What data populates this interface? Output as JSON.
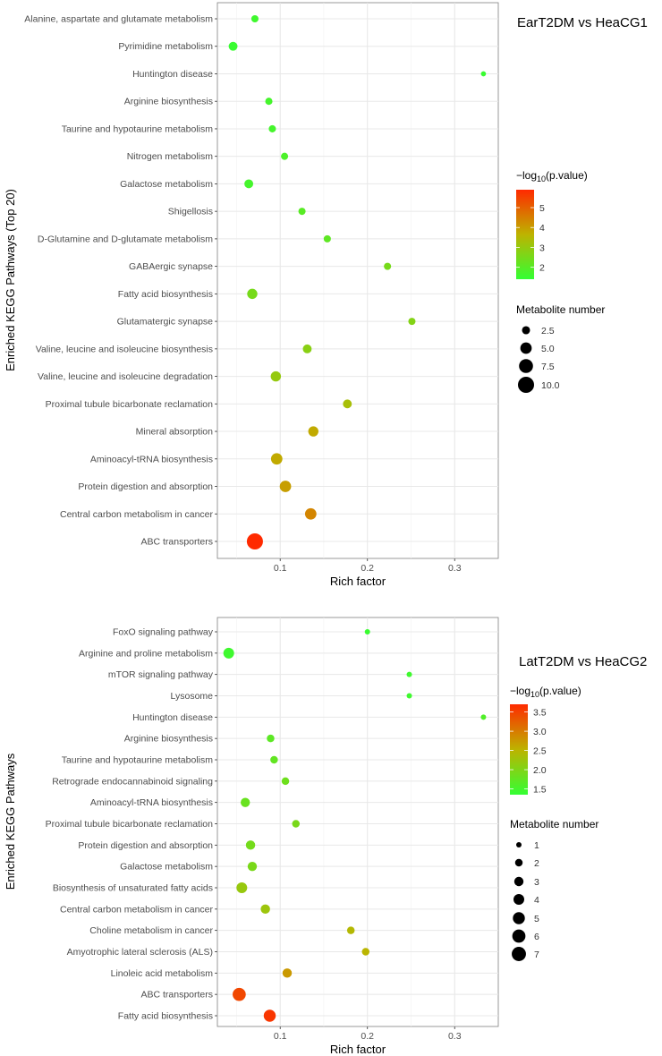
{
  "chart_data": [
    {
      "type": "scatter",
      "title": "EarT2DM vs HeaCG1",
      "xlabel": "Rich factor",
      "ylabel": "Enriched KEGG Pathways (Top 20)",
      "xticks": [
        "0.1",
        "0.2",
        "0.3"
      ],
      "xtick_values": [
        0.1,
        0.2,
        0.3
      ],
      "xlim": [
        0.028,
        0.35
      ],
      "color_legend": {
        "title_prefix": "−log",
        "title_sub": "10",
        "title_suffix": "(p.value)",
        "ticks": [
          "2",
          "3",
          "4",
          "5"
        ],
        "tick_values": [
          2,
          3,
          4,
          5
        ],
        "range": [
          1.4,
          5.9
        ],
        "low_color": "#33ff33",
        "mid_color": "#bdb300",
        "high_color": "#ff2a00"
      },
      "size_legend": {
        "title": "Metabolite number",
        "labels": [
          "2.5",
          "5.0",
          "7.5",
          "10.0"
        ],
        "values": [
          2.5,
          5,
          7.5,
          10
        ]
      },
      "points": [
        {
          "pathway": "Alanine, aspartate and glutamate metabolism",
          "rich_factor": 0.071,
          "count": 2,
          "neglog10p": 1.6
        },
        {
          "pathway": "Pyrimidine metabolism",
          "rich_factor": 0.046,
          "count": 3,
          "neglog10p": 1.5
        },
        {
          "pathway": "Huntington disease",
          "rich_factor": 0.333,
          "count": 1,
          "neglog10p": 1.5
        },
        {
          "pathway": "Arginine biosynthesis",
          "rich_factor": 0.087,
          "count": 2,
          "neglog10p": 1.7
        },
        {
          "pathway": "Taurine and hypotaurine metabolism",
          "rich_factor": 0.091,
          "count": 2,
          "neglog10p": 1.7
        },
        {
          "pathway": "Nitrogen metabolism",
          "rich_factor": 0.105,
          "count": 2,
          "neglog10p": 1.8
        },
        {
          "pathway": "Galactose metabolism",
          "rich_factor": 0.064,
          "count": 3,
          "neglog10p": 1.7
        },
        {
          "pathway": "Shigellosis",
          "rich_factor": 0.125,
          "count": 2,
          "neglog10p": 2.0
        },
        {
          "pathway": "D-Glutamine and D-glutamate metabolism",
          "rich_factor": 0.154,
          "count": 2,
          "neglog10p": 2.1
        },
        {
          "pathway": "GABAergic synapse",
          "rich_factor": 0.223,
          "count": 2,
          "neglog10p": 2.5
        },
        {
          "pathway": "Fatty acid biosynthesis",
          "rich_factor": 0.068,
          "count": 4,
          "neglog10p": 2.5
        },
        {
          "pathway": "Glutamatergic synapse",
          "rich_factor": 0.251,
          "count": 2,
          "neglog10p": 2.7
        },
        {
          "pathway": "Valine, leucine and isoleucine biosynthesis",
          "rich_factor": 0.131,
          "count": 3,
          "neglog10p": 2.8
        },
        {
          "pathway": "Valine, leucine and isoleucine degradation",
          "rich_factor": 0.095,
          "count": 4,
          "neglog10p": 3.0
        },
        {
          "pathway": "Proximal tubule bicarbonate reclamation",
          "rich_factor": 0.177,
          "count": 3,
          "neglog10p": 3.3
        },
        {
          "pathway": "Mineral absorption",
          "rich_factor": 0.138,
          "count": 4,
          "neglog10p": 3.8
        },
        {
          "pathway": "Aminoacyl-tRNA biosynthesis",
          "rich_factor": 0.096,
          "count": 5,
          "neglog10p": 3.8
        },
        {
          "pathway": "Protein digestion and absorption",
          "rich_factor": 0.106,
          "count": 5,
          "neglog10p": 4.0
        },
        {
          "pathway": "Central carbon metabolism in cancer",
          "rich_factor": 0.135,
          "count": 5,
          "neglog10p": 4.4
        },
        {
          "pathway": "ABC transporters",
          "rich_factor": 0.071,
          "count": 10,
          "neglog10p": 5.9
        }
      ]
    },
    {
      "type": "scatter",
      "title": "LatT2DM vs HeaCG2",
      "xlabel": "Rich factor",
      "ylabel": "Enriched KEGG Pathways",
      "xticks": [
        "0.1",
        "0.2",
        "0.3"
      ],
      "xtick_values": [
        0.1,
        0.2,
        0.3
      ],
      "xlim": [
        0.028,
        0.35
      ],
      "color_legend": {
        "title_prefix": "−log",
        "title_sub": "10",
        "title_suffix": "(p.value)",
        "ticks": [
          "1.5",
          "2.0",
          "2.5",
          "3.0",
          "3.5"
        ],
        "tick_values": [
          1.5,
          2.0,
          2.5,
          3.0,
          3.5
        ],
        "range": [
          1.35,
          3.7
        ],
        "low_color": "#33ff33",
        "mid_color": "#bdb300",
        "high_color": "#ff2a00"
      },
      "size_legend": {
        "title": "Metabolite number",
        "labels": [
          "1",
          "2",
          "3",
          "4",
          "5",
          "6",
          "7"
        ],
        "values": [
          1,
          2,
          3,
          4,
          5,
          6,
          7
        ]
      },
      "points": [
        {
          "pathway": "FoxO signaling pathway",
          "rich_factor": 0.2,
          "count": 1,
          "neglog10p": 1.4
        },
        {
          "pathway": "Arginine and proline metabolism",
          "rich_factor": 0.041,
          "count": 4,
          "neglog10p": 1.45
        },
        {
          "pathway": "mTOR signaling pathway",
          "rich_factor": 0.248,
          "count": 1,
          "neglog10p": 1.45
        },
        {
          "pathway": "Lysosome",
          "rich_factor": 0.248,
          "count": 1,
          "neglog10p": 1.45
        },
        {
          "pathway": "Huntington disease",
          "rich_factor": 0.333,
          "count": 1,
          "neglog10p": 1.6
        },
        {
          "pathway": "Arginine biosynthesis",
          "rich_factor": 0.089,
          "count": 2,
          "neglog10p": 1.7
        },
        {
          "pathway": "Taurine and hypotaurine metabolism",
          "rich_factor": 0.093,
          "count": 2,
          "neglog10p": 1.75
        },
        {
          "pathway": "Retrograde endocannabinoid signaling",
          "rich_factor": 0.106,
          "count": 2,
          "neglog10p": 1.85
        },
        {
          "pathway": "Aminoacyl-tRNA biosynthesis",
          "rich_factor": 0.06,
          "count": 3,
          "neglog10p": 1.8
        },
        {
          "pathway": "Proximal tubule bicarbonate reclamation",
          "rich_factor": 0.118,
          "count": 2,
          "neglog10p": 1.95
        },
        {
          "pathway": "Protein digestion and absorption",
          "rich_factor": 0.066,
          "count": 3,
          "neglog10p": 1.9
        },
        {
          "pathway": "Galactose metabolism",
          "rich_factor": 0.068,
          "count": 3,
          "neglog10p": 1.95
        },
        {
          "pathway": "Biosynthesis of unsaturated fatty acids",
          "rich_factor": 0.056,
          "count": 4,
          "neglog10p": 2.2
        },
        {
          "pathway": "Central carbon metabolism in cancer",
          "rich_factor": 0.083,
          "count": 3,
          "neglog10p": 2.25
        },
        {
          "pathway": "Choline metabolism in cancer",
          "rich_factor": 0.181,
          "count": 2,
          "neglog10p": 2.45
        },
        {
          "pathway": "Amyotrophic lateral sclerosis (ALS)",
          "rich_factor": 0.198,
          "count": 2,
          "neglog10p": 2.5
        },
        {
          "pathway": "Linoleic acid metabolism",
          "rich_factor": 0.108,
          "count": 3,
          "neglog10p": 2.75
        },
        {
          "pathway": "ABC transporters",
          "rich_factor": 0.053,
          "count": 6,
          "neglog10p": 3.45
        },
        {
          "pathway": "Fatty acid biosynthesis",
          "rich_factor": 0.088,
          "count": 5,
          "neglog10p": 3.6
        }
      ]
    }
  ]
}
